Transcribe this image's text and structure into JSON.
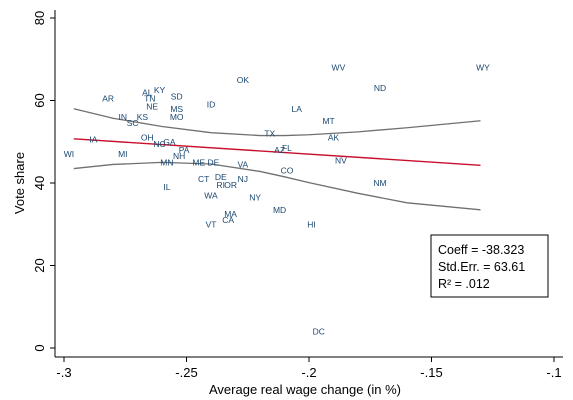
{
  "chart_data": {
    "type": "scatter",
    "title": "",
    "xlabel": "Average real wage change (in %)",
    "ylabel": "Vote share",
    "xlim": [
      -0.3,
      -0.1
    ],
    "ylim": [
      0,
      80
    ],
    "xticks": [
      -0.3,
      -0.25,
      -0.2,
      -0.15,
      -0.1
    ],
    "xtick_labels": [
      "-.3",
      "-.25",
      "-.2",
      "-.15",
      "-.1"
    ],
    "yticks": [
      0,
      20,
      40,
      60,
      80
    ],
    "ytick_labels": [
      "0",
      "20",
      "40",
      "60",
      "80"
    ],
    "grid": false,
    "points": [
      {
        "label": "WY",
        "x": -0.129,
        "y": 68
      },
      {
        "label": "WV",
        "x": -0.188,
        "y": 68
      },
      {
        "label": "ND",
        "x": -0.171,
        "y": 63
      },
      {
        "label": "OK",
        "x": -0.227,
        "y": 65
      },
      {
        "label": "AR",
        "x": -0.282,
        "y": 60.5
      },
      {
        "label": "AL",
        "x": -0.266,
        "y": 62
      },
      {
        "label": "KY",
        "x": -0.261,
        "y": 62.5
      },
      {
        "label": "TN",
        "x": -0.265,
        "y": 60.5
      },
      {
        "label": "SD",
        "x": -0.254,
        "y": 61
      },
      {
        "label": "NE",
        "x": -0.264,
        "y": 58.5
      },
      {
        "label": "ID",
        "x": -0.24,
        "y": 59
      },
      {
        "label": "MS",
        "x": -0.254,
        "y": 58
      },
      {
        "label": "LA",
        "x": -0.205,
        "y": 58
      },
      {
        "label": "IN",
        "x": -0.276,
        "y": 56
      },
      {
        "label": "KS",
        "x": -0.268,
        "y": 56
      },
      {
        "label": "MO",
        "x": -0.254,
        "y": 56
      },
      {
        "label": "SC",
        "x": -0.272,
        "y": 54.5
      },
      {
        "label": "MT",
        "x": -0.192,
        "y": 55
      },
      {
        "label": "TX",
        "x": -0.216,
        "y": 52
      },
      {
        "label": "AK",
        "x": -0.19,
        "y": 51
      },
      {
        "label": "OH",
        "x": -0.266,
        "y": 51
      },
      {
        "label": "IA",
        "x": -0.288,
        "y": 50.5
      },
      {
        "label": "GA",
        "x": -0.257,
        "y": 50
      },
      {
        "label": "NC",
        "x": -0.261,
        "y": 49.5
      },
      {
        "label": "AZ",
        "x": -0.212,
        "y": 48
      },
      {
        "label": "FL",
        "x": -0.209,
        "y": 48.5
      },
      {
        "label": "PA",
        "x": -0.251,
        "y": 48
      },
      {
        "label": "WI",
        "x": -0.298,
        "y": 47
      },
      {
        "label": "MI",
        "x": -0.276,
        "y": 47
      },
      {
        "label": "NH",
        "x": -0.253,
        "y": 46.5
      },
      {
        "label": "NV",
        "x": -0.187,
        "y": 45.5
      },
      {
        "label": "MN",
        "x": -0.258,
        "y": 45
      },
      {
        "label": "ME",
        "x": -0.245,
        "y": 45
      },
      {
        "label": "DE",
        "x": -0.239,
        "y": 45
      },
      {
        "label": "VA",
        "x": -0.227,
        "y": 44.5
      },
      {
        "label": "CO",
        "x": -0.209,
        "y": 43
      },
      {
        "label": "CT",
        "x": -0.243,
        "y": 41
      },
      {
        "label": "DE",
        "x": -0.236,
        "y": 41.5
      },
      {
        "label": "NJ",
        "x": -0.227,
        "y": 41
      },
      {
        "label": "RI",
        "x": -0.236,
        "y": 39.5
      },
      {
        "label": "OR",
        "x": -0.232,
        "y": 39.5
      },
      {
        "label": "IL",
        "x": -0.258,
        "y": 39
      },
      {
        "label": "NM",
        "x": -0.171,
        "y": 40
      },
      {
        "label": "WA",
        "x": -0.24,
        "y": 37
      },
      {
        "label": "NY",
        "x": -0.222,
        "y": 36.5
      },
      {
        "label": "MD",
        "x": -0.212,
        "y": 33.5
      },
      {
        "label": "MA",
        "x": -0.232,
        "y": 32.5
      },
      {
        "label": "CA",
        "x": -0.233,
        "y": 31
      },
      {
        "label": "VT",
        "x": -0.24,
        "y": 30
      },
      {
        "label": "HI",
        "x": -0.199,
        "y": 30
      },
      {
        "label": "DC",
        "x": -0.196,
        "y": 4
      }
    ],
    "fit_line": {
      "x": [
        -0.296,
        -0.13
      ],
      "y": [
        50.7,
        44.3
      ],
      "color": "#c8102e"
    },
    "ci_upper": {
      "x": [
        -0.296,
        -0.28,
        -0.26,
        -0.24,
        -0.22,
        -0.21,
        -0.2,
        -0.18,
        -0.16,
        -0.13
      ],
      "y": [
        58.0,
        55.7,
        53.7,
        52.2,
        51.5,
        51.5,
        51.7,
        52.4,
        53.4,
        55.1
      ],
      "color": "#707070"
    },
    "ci_lower": {
      "x": [
        -0.296,
        -0.28,
        -0.26,
        -0.24,
        -0.22,
        -0.21,
        -0.2,
        -0.18,
        -0.16,
        -0.13
      ],
      "y": [
        43.5,
        44.5,
        45.0,
        44.6,
        42.8,
        41.5,
        40.1,
        37.5,
        35.2,
        33.5
      ],
      "color": "#707070"
    },
    "stats_box": {
      "lines": [
        "Coeff = -38.323",
        "Std.Err. = 63.61",
        "R² = .012"
      ],
      "placement": "bottom-right"
    },
    "point_color": "#1a476f"
  }
}
